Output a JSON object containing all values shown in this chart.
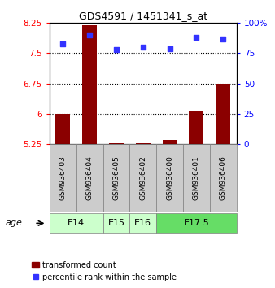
{
  "title": "GDS4591 / 1451341_s_at",
  "samples": [
    "GSM936403",
    "GSM936404",
    "GSM936405",
    "GSM936402",
    "GSM936400",
    "GSM936401",
    "GSM936406"
  ],
  "transformed_count": [
    6.0,
    8.2,
    5.28,
    5.27,
    5.35,
    6.05,
    6.75
  ],
  "percentile_rank": [
    83,
    90,
    78,
    80,
    79,
    88,
    87
  ],
  "age_groups": [
    {
      "label": "E14",
      "samples": [
        0,
        1
      ],
      "color": "#ccffcc"
    },
    {
      "label": "E15",
      "samples": [
        2
      ],
      "color": "#ccffcc"
    },
    {
      "label": "E16",
      "samples": [
        3
      ],
      "color": "#ccffcc"
    },
    {
      "label": "E17.5",
      "samples": [
        4,
        5,
        6
      ],
      "color": "#66dd66"
    }
  ],
  "ylim_left": [
    5.25,
    8.25
  ],
  "ylim_right": [
    0,
    100
  ],
  "yticks_left": [
    5.25,
    6.0,
    6.75,
    7.5,
    8.25
  ],
  "yticks_right": [
    0,
    25,
    50,
    75,
    100
  ],
  "ytick_labels_left": [
    "5.25",
    "6",
    "6.75",
    "7.5",
    "8.25"
  ],
  "ytick_labels_right": [
    "0",
    "25",
    "50",
    "75",
    "100%"
  ],
  "bar_color": "#8B0000",
  "dot_color": "#3333FF",
  "bar_bottom": 5.25,
  "age_label": "age",
  "legend_bar_label": "transformed count",
  "legend_dot_label": "percentile rank within the sample",
  "grid_yticks": [
    6.0,
    6.75,
    7.5
  ],
  "sample_bg_color": "#cccccc",
  "figsize": [
    3.38,
    3.54
  ],
  "dpi": 100
}
